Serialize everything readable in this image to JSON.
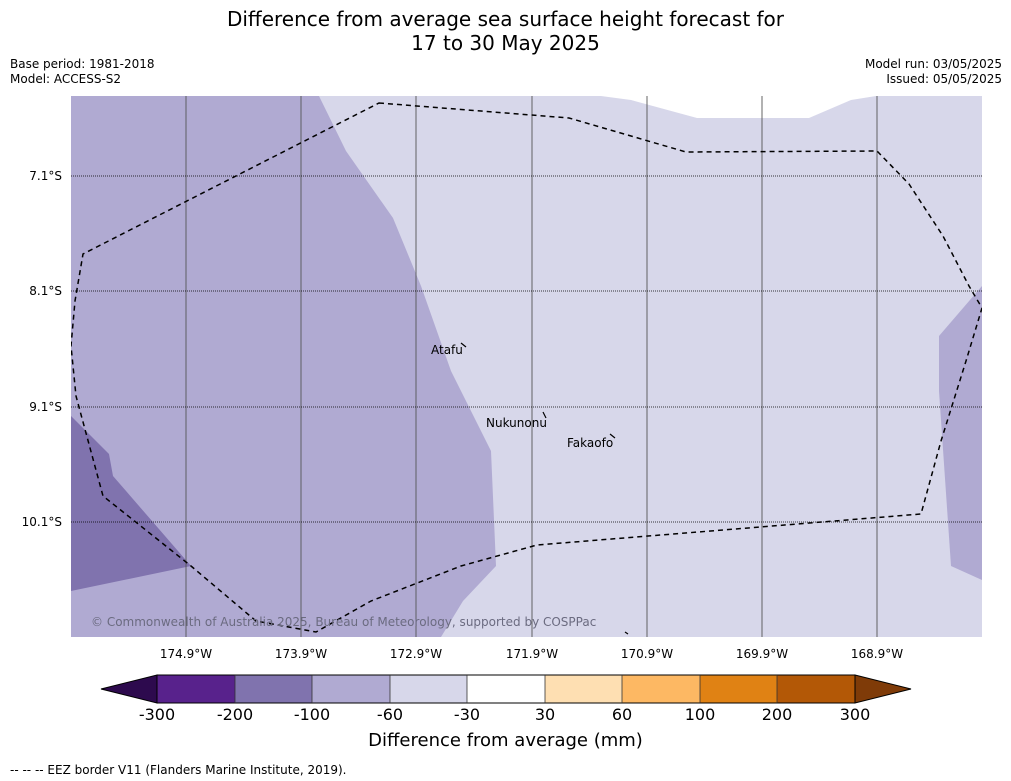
{
  "title": {
    "line1": "Difference from average sea surface height forecast for",
    "line2": "17 to 30 May 2025"
  },
  "meta": {
    "base_period": "Base period: 1981-2018",
    "model": "Model: ACCESS-S2",
    "model_run": "Model run: 03/05/2025",
    "issued": "Issued: 05/05/2025"
  },
  "map": {
    "lat_labels": [
      "7.1°S",
      "8.1°S",
      "9.1°S",
      "10.1°S"
    ],
    "lon_labels": [
      "174.9°W",
      "173.9°W",
      "172.9°W",
      "171.9°W",
      "170.9°W",
      "169.9°W",
      "168.9°W"
    ],
    "places": [
      "Atafu",
      "Nukunonu",
      "Fakaofo"
    ],
    "copyright": "© Commonwealth of Australia 2025, Bureau of Meteorology, supported by COSPPac",
    "colors": {
      "band_-100_-60": "#b0aad2",
      "band_-60_-30": "#d7d7ea",
      "band_-200_-100": "#8073ae"
    }
  },
  "colorbar": {
    "ticks": [
      "-300",
      "-200",
      "-100",
      "-60",
      "-30",
      "30",
      "60",
      "100",
      "200",
      "300"
    ],
    "colors": [
      "#2d0a4e",
      "#58228c",
      "#8073ae",
      "#b0aad2",
      "#d7d7ea",
      "#ffffff",
      "#fedfb2",
      "#fdb863",
      "#e08214",
      "#b35806",
      "#7f3b08"
    ],
    "title": "Difference from average (mm)"
  },
  "footnote": "--  --  -- EEZ border V11 (Flanders Marine Institute, 2019)."
}
